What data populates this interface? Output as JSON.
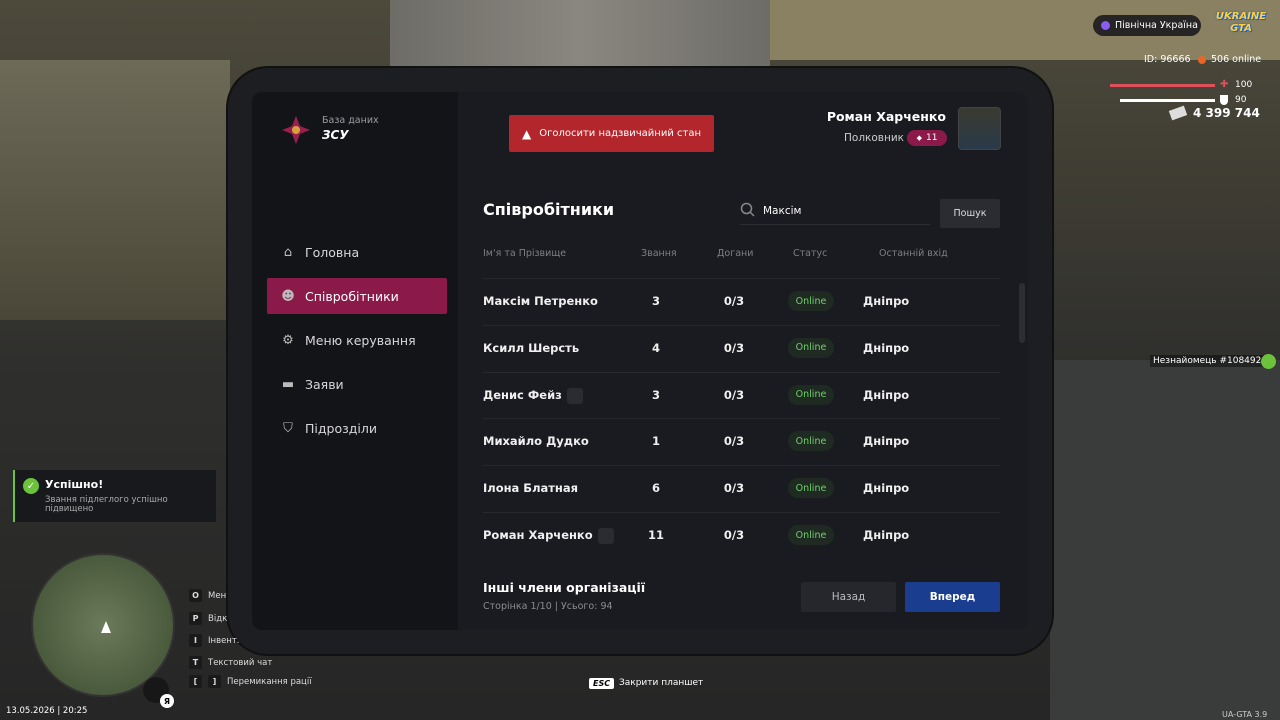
{
  "hud": {
    "region": "Північна Україна",
    "logo": "UKRAINE GTA",
    "id": "ID: 96666",
    "online": "506 online",
    "health": 100,
    "armor": 90,
    "money": "4 399 744",
    "stranger": "Незнайомець #108492",
    "date": "13.05.2026 | 20:25",
    "mic_key": "Я",
    "version": "UA-GTA 3.9",
    "esc_key": "ESC",
    "esc_label": "Закрити планшет"
  },
  "notification": {
    "title": "Успішно!",
    "text": "Звання підлеглого успішно підвищено"
  },
  "keybinds": [
    {
      "keys": [
        "O"
      ],
      "label": "Мен"
    },
    {
      "keys": [
        "P"
      ],
      "label": "Відк"
    },
    {
      "keys": [
        "I"
      ],
      "label": "Інвент."
    },
    {
      "keys": [
        "T"
      ],
      "label": "Текстовий чат"
    },
    {
      "keys": [
        "[",
        "]"
      ],
      "label": "Перемикання рації"
    }
  ],
  "tablet": {
    "subtitle": "База даних",
    "org": "ЗСУ",
    "emergency_button": "Оголосити надзвичайний стан",
    "user": {
      "name": "Роман Харченко",
      "rank": "Полковник",
      "level": "11"
    },
    "nav": [
      "Головна",
      "Співробітники",
      "Меню керування",
      "Заяви",
      "Підрозділи"
    ],
    "active_nav": 1,
    "page_title": "Співробітники",
    "search_value": "Максім",
    "search_button": "Пошук",
    "columns": [
      "Ім'я та Прізвище",
      "Звання",
      "Догани",
      "Статус",
      "Останній вхід"
    ],
    "rows": [
      {
        "name": "Максім Петренко",
        "shield": false,
        "rank": "3",
        "reprimands": "0/3",
        "status": "Online",
        "last_login": "Дніпро"
      },
      {
        "name": "Ксилл Шерсть",
        "shield": false,
        "rank": "4",
        "reprimands": "0/3",
        "status": "Online",
        "last_login": "Дніпро"
      },
      {
        "name": "Денис Фейз",
        "shield": true,
        "rank": "3",
        "reprimands": "0/3",
        "status": "Online",
        "last_login": "Дніпро"
      },
      {
        "name": "Михайло Дудко",
        "shield": false,
        "rank": "1",
        "reprimands": "0/3",
        "status": "Online",
        "last_login": "Дніпро"
      },
      {
        "name": "Ілона Блатная",
        "shield": false,
        "rank": "6",
        "reprimands": "0/3",
        "status": "Online",
        "last_login": "Дніпро"
      },
      {
        "name": "Роман Харченко",
        "shield": true,
        "rank": "11",
        "reprimands": "0/3",
        "status": "Online",
        "last_login": "Дніпро"
      }
    ],
    "footer_title": "Інші члени організації",
    "page_info": "Сторінка 1/10 | Усього: 94",
    "prev_button": "Назад",
    "next_button": "Вперед"
  }
}
